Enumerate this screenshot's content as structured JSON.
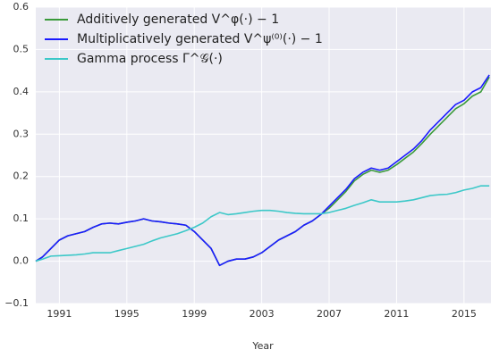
{
  "chart_data": {
    "type": "line",
    "x_label": "Year",
    "x": [
      1989.6,
      1990,
      1990.5,
      1991,
      1991.5,
      1992,
      1992.5,
      1993,
      1993.5,
      1994,
      1994.5,
      1995,
      1995.5,
      1996,
      1996.5,
      1997,
      1997.5,
      1998,
      1998.5,
      1999,
      1999.5,
      2000,
      2000.5,
      2001,
      2001.5,
      2002,
      2002.5,
      2003,
      2003.5,
      2004,
      2004.5,
      2005,
      2005.5,
      2006,
      2006.5,
      2007,
      2007.5,
      2008,
      2008.5,
      2009,
      2009.5,
      2010,
      2010.5,
      2011,
      2011.5,
      2012,
      2012.5,
      2013,
      2013.5,
      2014,
      2014.5,
      2015,
      2015.5,
      2016,
      2016.5
    ],
    "series": [
      {
        "name": "Additively generated V^φ(·) − 1",
        "color": "#3a9a3a",
        "values": [
          0,
          0.01,
          0.03,
          0.05,
          0.06,
          0.065,
          0.07,
          0.08,
          0.088,
          0.09,
          0.088,
          0.092,
          0.095,
          0.1,
          0.095,
          0.093,
          0.09,
          0.088,
          0.085,
          0.07,
          0.05,
          0.03,
          -0.01,
          0,
          0.005,
          0.005,
          0.01,
          0.02,
          0.035,
          0.05,
          0.06,
          0.07,
          0.085,
          0.095,
          0.11,
          0.125,
          0.145,
          0.165,
          0.19,
          0.205,
          0.215,
          0.21,
          0.215,
          0.228,
          0.243,
          0.258,
          0.278,
          0.3,
          0.32,
          0.34,
          0.36,
          0.372,
          0.39,
          0.4,
          0.435
        ]
      },
      {
        "name": "Multiplicatively generated V^ψ⁽⁰⁾(·) − 1",
        "color": "#1a1aff",
        "values": [
          0,
          0.01,
          0.03,
          0.05,
          0.06,
          0.065,
          0.07,
          0.08,
          0.088,
          0.09,
          0.088,
          0.092,
          0.095,
          0.1,
          0.095,
          0.093,
          0.09,
          0.088,
          0.085,
          0.07,
          0.05,
          0.03,
          -0.01,
          0,
          0.005,
          0.005,
          0.01,
          0.02,
          0.035,
          0.05,
          0.06,
          0.07,
          0.085,
          0.095,
          0.11,
          0.13,
          0.15,
          0.17,
          0.195,
          0.21,
          0.22,
          0.215,
          0.22,
          0.235,
          0.25,
          0.265,
          0.285,
          0.31,
          0.33,
          0.35,
          0.37,
          0.38,
          0.4,
          0.41,
          0.44
        ]
      },
      {
        "name": "Gamma process Γ^𝒢(·)",
        "color": "#3cc8c8",
        "values": [
          0,
          0.005,
          0.012,
          0.013,
          0.014,
          0.015,
          0.017,
          0.02,
          0.02,
          0.02,
          0.025,
          0.03,
          0.035,
          0.04,
          0.048,
          0.055,
          0.06,
          0.065,
          0.072,
          0.08,
          0.09,
          0.105,
          0.115,
          0.11,
          0.112,
          0.115,
          0.118,
          0.12,
          0.12,
          0.118,
          0.115,
          0.113,
          0.112,
          0.112,
          0.112,
          0.115,
          0.12,
          0.125,
          0.132,
          0.138,
          0.145,
          0.14,
          0.14,
          0.14,
          0.142,
          0.145,
          0.15,
          0.155,
          0.157,
          0.158,
          0.162,
          0.168,
          0.172,
          0.178,
          0.178
        ]
      }
    ],
    "xlim": [
      1989.6,
      2016.6
    ],
    "xticks": [
      1991,
      1995,
      1999,
      2003,
      2007,
      2011,
      2015
    ],
    "ylim": [
      -0.1,
      0.6
    ],
    "yticks": [
      {
        "value": -0.1,
        "label": "−0.1"
      },
      {
        "value": 0,
        "label": "0.0"
      },
      0.1,
      0.2,
      0.3,
      0.4,
      0.5,
      0.6
    ],
    "grid": true,
    "legend": "upper left"
  }
}
